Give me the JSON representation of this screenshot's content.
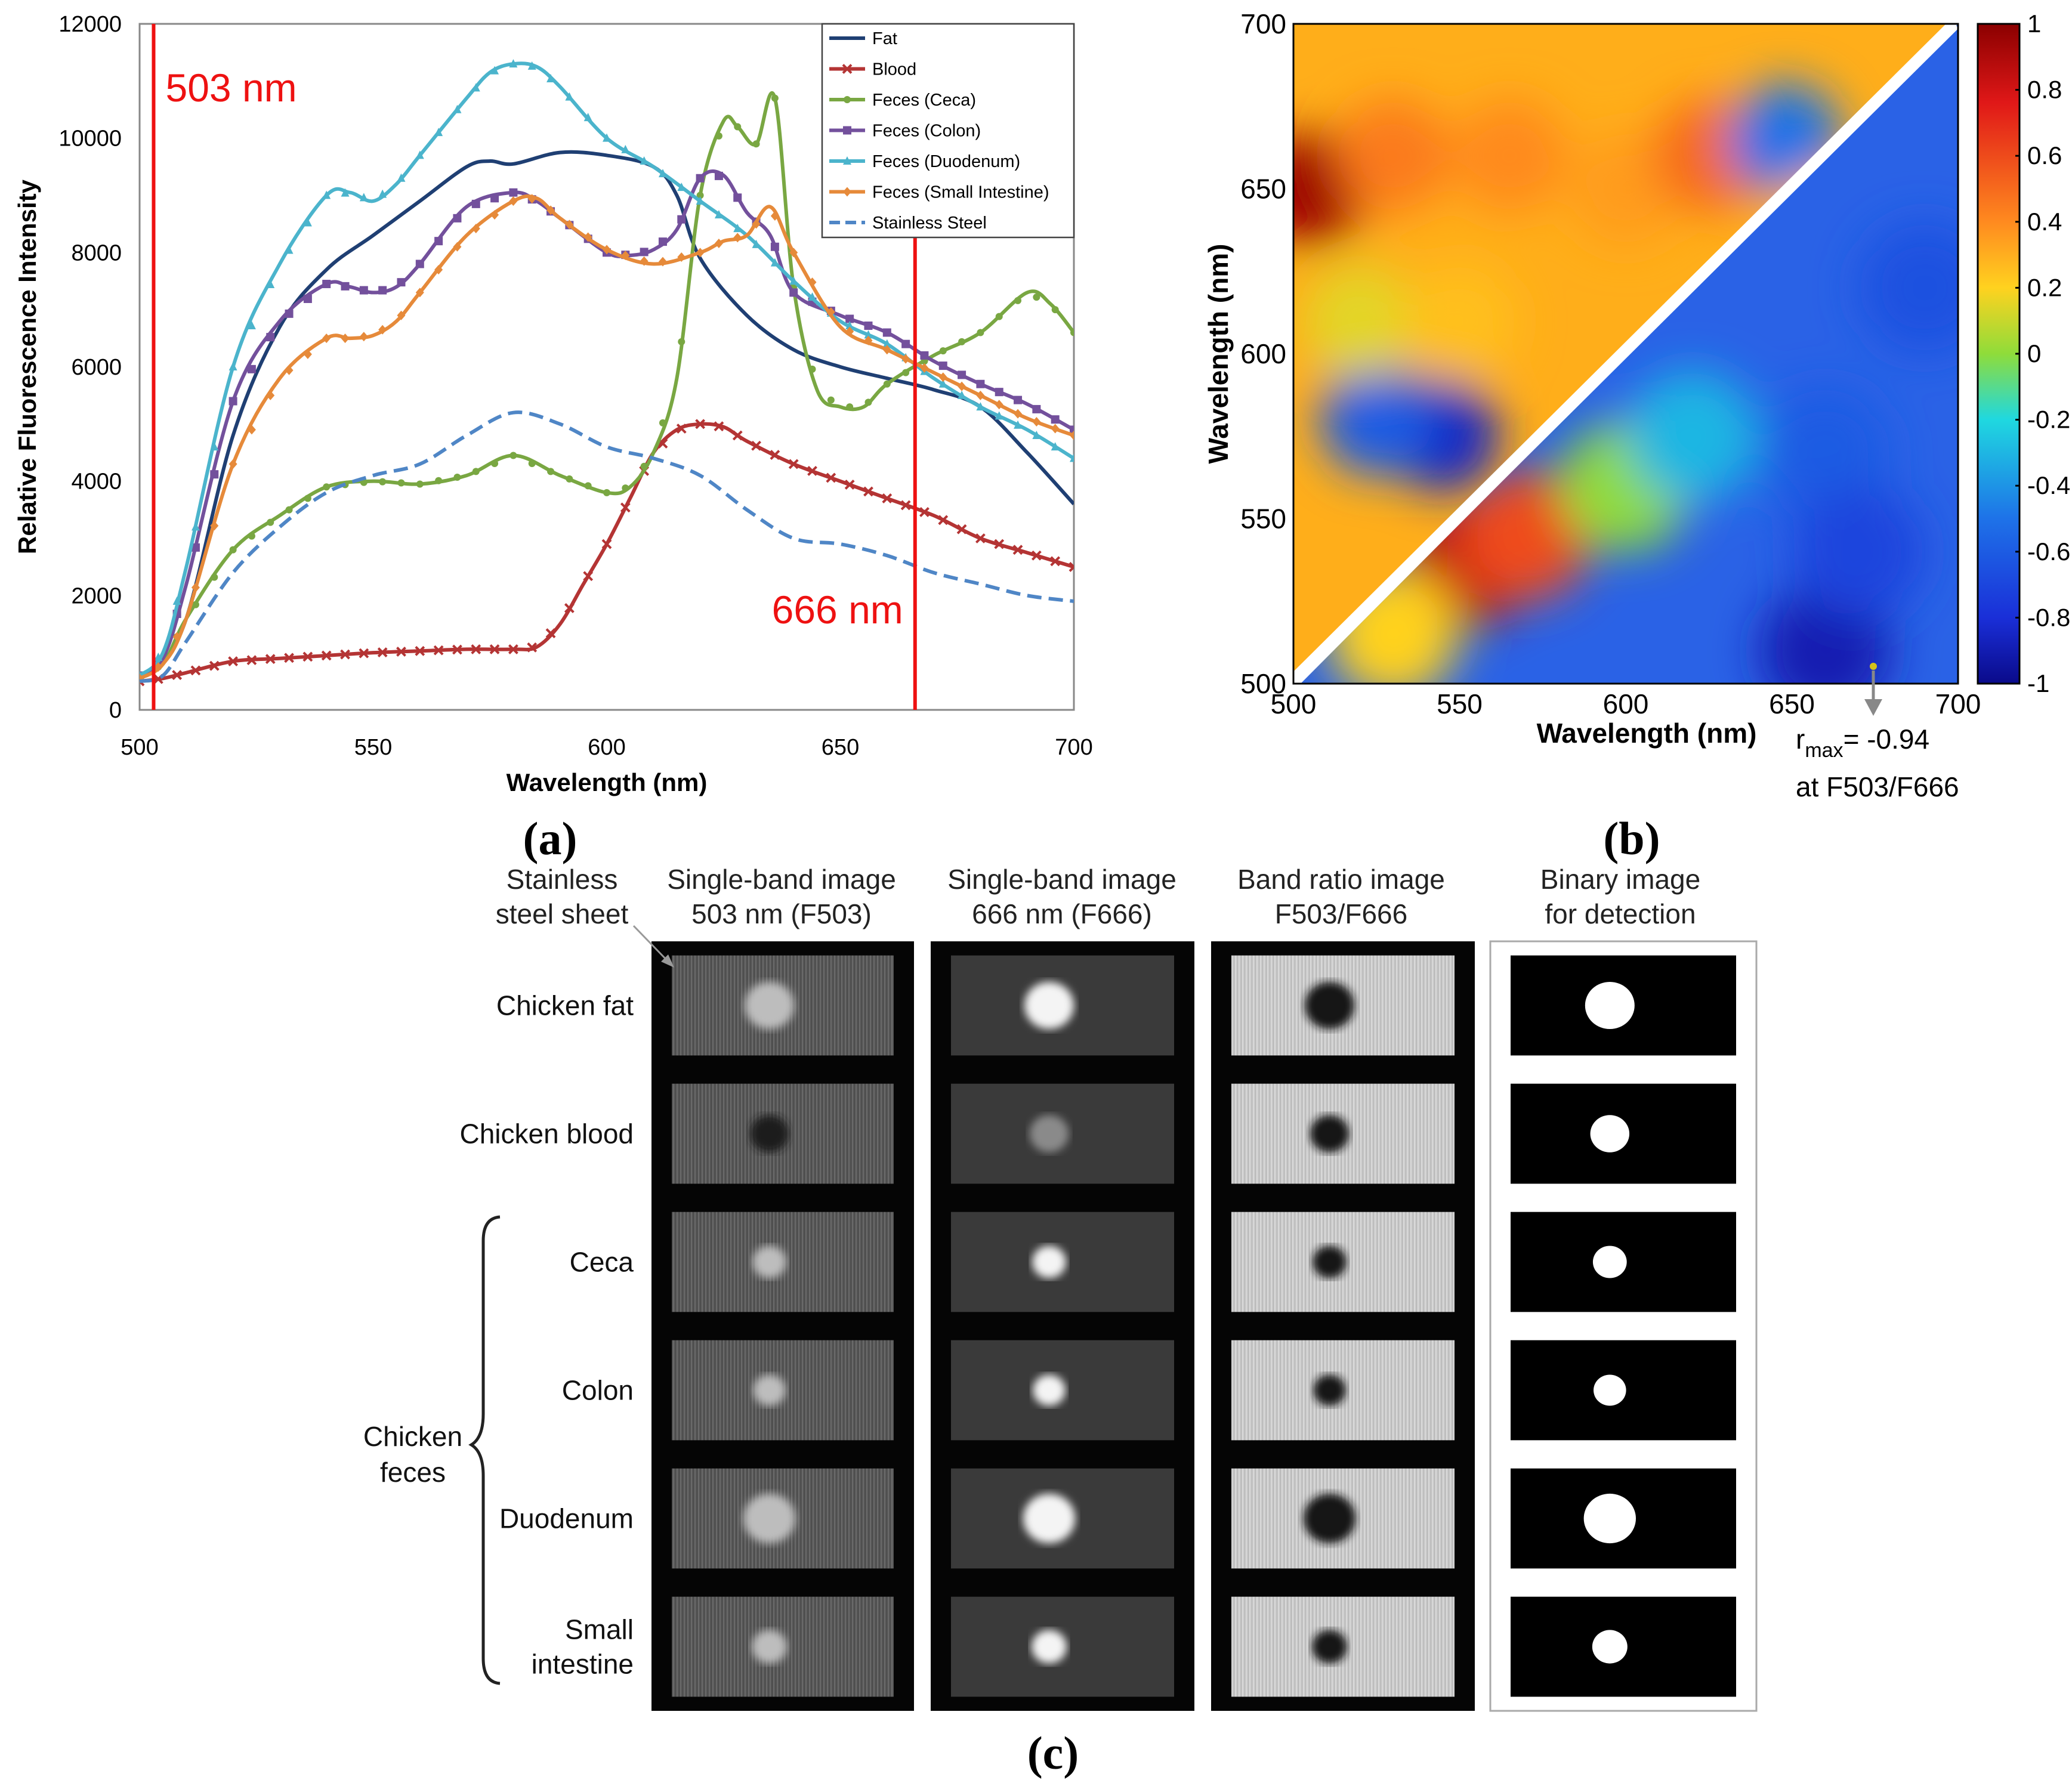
{
  "chart_data": [
    {
      "panel": "(a)",
      "type": "line",
      "xlabel": "Wavelength (nm)",
      "ylabel": "Relative Fluorescence Intensity",
      "xlim": [
        500,
        700
      ],
      "ylim": [
        0,
        12000
      ],
      "xticks": [
        "500",
        "550",
        "600",
        "650",
        "700"
      ],
      "yticks": [
        "0",
        "2000",
        "4000",
        "6000",
        "8000",
        "10000",
        "12000"
      ],
      "markers": [
        {
          "x": 503,
          "label": "503 nm"
        },
        {
          "x": 666,
          "label": "666 nm"
        }
      ],
      "legend_position": "top-right",
      "series": [
        {
          "name": "Fat",
          "color": "#1f3f73",
          "marker": "none",
          "x": [
            500,
            503,
            510,
            520,
            530,
            540,
            550,
            560,
            570,
            575,
            580,
            590,
            600,
            610,
            615,
            620,
            630,
            640,
            650,
            660,
            670,
            680,
            690,
            700
          ],
          "y": [
            600,
            700,
            1600,
            4800,
            6700,
            7700,
            8300,
            8900,
            9500,
            9600,
            9550,
            9750,
            9700,
            9500,
            9000,
            7900,
            6900,
            6300,
            6000,
            5800,
            5600,
            5300,
            4500,
            3600
          ]
        },
        {
          "name": "Blood",
          "color": "#b43434",
          "marker": "x",
          "x": [
            500,
            505,
            510,
            520,
            530,
            540,
            550,
            560,
            570,
            580,
            585,
            590,
            595,
            600,
            605,
            610,
            615,
            620,
            625,
            630,
            640,
            650,
            660,
            670,
            680,
            690,
            700
          ],
          "y": [
            500,
            550,
            650,
            850,
            900,
            950,
            1000,
            1030,
            1060,
            1060,
            1100,
            1500,
            2200,
            2900,
            3700,
            4500,
            4900,
            5000,
            4950,
            4700,
            4300,
            4000,
            3700,
            3400,
            3000,
            2750,
            2500
          ]
        },
        {
          "name": "Feces (Ceca)",
          "color": "#79a742",
          "marker": "circle",
          "x": [
            500,
            505,
            510,
            520,
            530,
            540,
            550,
            560,
            570,
            580,
            590,
            600,
            605,
            610,
            615,
            620,
            625,
            628,
            632,
            636,
            640,
            645,
            650,
            655,
            660,
            670,
            680,
            690,
            695,
            700
          ],
          "y": [
            550,
            800,
            1600,
            2800,
            3400,
            3900,
            4000,
            3950,
            4100,
            4450,
            4100,
            3800,
            3900,
            4500,
            5800,
            9000,
            10300,
            10200,
            9900,
            10700,
            7400,
            5600,
            5300,
            5300,
            5700,
            6200,
            6600,
            7300,
            7100,
            6600
          ]
        },
        {
          "name": "Feces (Colon)",
          "color": "#73509c",
          "marker": "square",
          "x": [
            500,
            505,
            510,
            520,
            530,
            540,
            545,
            550,
            555,
            560,
            570,
            580,
            585,
            590,
            600,
            605,
            610,
            615,
            620,
            625,
            630,
            635,
            640,
            650,
            660,
            670,
            680,
            690,
            700
          ],
          "y": [
            600,
            900,
            2200,
            5400,
            6800,
            7450,
            7400,
            7300,
            7400,
            7800,
            8800,
            9050,
            8900,
            8600,
            8000,
            7950,
            8050,
            8400,
            9300,
            9350,
            8700,
            8300,
            7300,
            6900,
            6600,
            6100,
            5700,
            5350,
            4900
          ]
        },
        {
          "name": "Feces (Duodenum)",
          "color": "#4bb4cc",
          "marker": "triangle",
          "x": [
            500,
            505,
            510,
            520,
            530,
            540,
            545,
            550,
            555,
            560,
            570,
            575,
            580,
            585,
            590,
            600,
            610,
            620,
            630,
            640,
            650,
            660,
            670,
            680,
            690,
            700
          ],
          "y": [
            600,
            1000,
            2500,
            6000,
            7800,
            9000,
            9050,
            8900,
            9200,
            9700,
            10700,
            11150,
            11300,
            11250,
            10900,
            10000,
            9500,
            8900,
            8300,
            7500,
            6800,
            6400,
            5800,
            5300,
            4900,
            4400
          ]
        },
        {
          "name": "Feces (Small Intestine)",
          "color": "#e68a3a",
          "marker": "diamond",
          "x": [
            500,
            505,
            510,
            520,
            530,
            540,
            545,
            550,
            555,
            560,
            570,
            580,
            585,
            590,
            600,
            610,
            620,
            625,
            630,
            635,
            640,
            650,
            660,
            670,
            680,
            690,
            700
          ],
          "y": [
            550,
            800,
            1600,
            4300,
            5800,
            6500,
            6500,
            6550,
            6800,
            7300,
            8300,
            8900,
            8950,
            8600,
            8050,
            7800,
            8000,
            8200,
            8300,
            8800,
            8000,
            6700,
            6300,
            5900,
            5500,
            5100,
            4800
          ]
        },
        {
          "name": "Stainless Steel",
          "color": "#4f86c6",
          "marker": "dash",
          "x": [
            500,
            505,
            510,
            520,
            530,
            540,
            550,
            560,
            570,
            580,
            590,
            600,
            610,
            620,
            630,
            640,
            650,
            660,
            670,
            680,
            690,
            700
          ],
          "y": [
            500,
            600,
            1200,
            2400,
            3200,
            3800,
            4100,
            4300,
            4800,
            5200,
            5000,
            4600,
            4400,
            4100,
            3500,
            3000,
            2900,
            2700,
            2400,
            2200,
            2000,
            1900
          ]
        }
      ]
    },
    {
      "panel": "(b)",
      "type": "heatmap",
      "xlabel": "Wavelength (nm)",
      "ylabel": "Wavelength (nm)",
      "xlim": [
        500,
        700
      ],
      "ylim": [
        500,
        700
      ],
      "xticks": [
        "500",
        "550",
        "600",
        "650",
        "700"
      ],
      "yticks": [
        "500",
        "550",
        "600",
        "650",
        "700"
      ],
      "colorbar": {
        "ticks": [
          "1",
          "0.8",
          "0.6",
          "0.4",
          "0.2",
          "0",
          "-0.2",
          "-0.4",
          "-0.6",
          "-0.8",
          "-1"
        ],
        "range": [
          -1,
          1
        ]
      },
      "annotation": {
        "r_label": "r",
        "r_sub": "max",
        "r_value": "= -0.94",
        "at": "at F503/F666"
      },
      "upper_hotspots": [
        {
          "x": 505,
          "y": 650,
          "r": 0.95
        },
        {
          "x": 530,
          "y": 660,
          "r": 0.45
        },
        {
          "x": 565,
          "y": 660,
          "r": 0.4
        },
        {
          "x": 600,
          "y": 650,
          "r": 0.35
        },
        {
          "x": 625,
          "y": 660,
          "r": 0.5
        },
        {
          "x": 648,
          "y": 665,
          "r": -0.5
        },
        {
          "x": 660,
          "y": 638,
          "r": 0.3
        },
        {
          "x": 545,
          "y": 575,
          "r": -0.85
        },
        {
          "x": 525,
          "y": 580,
          "r": -0.6
        },
        {
          "x": 520,
          "y": 610,
          "r": 0.15
        },
        {
          "x": 550,
          "y": 610,
          "r": 0.25
        }
      ],
      "lower_hotspots": [
        {
          "x": 552,
          "y": 537,
          "r": 0.85
        },
        {
          "x": 570,
          "y": 545,
          "r": 0.6
        },
        {
          "x": 530,
          "y": 515,
          "r": 0.2
        },
        {
          "x": 600,
          "y": 560,
          "r": 0.0
        },
        {
          "x": 620,
          "y": 575,
          "r": -0.3
        },
        {
          "x": 660,
          "y": 570,
          "r": -0.6
        },
        {
          "x": 660,
          "y": 510,
          "r": -0.9
        },
        {
          "x": 690,
          "y": 620,
          "r": -0.65
        },
        {
          "x": 670,
          "y": 540,
          "r": -0.7
        }
      ]
    }
  ],
  "panels": {
    "a": "(a)",
    "b": "(b)",
    "c": "(c)"
  },
  "images_panel": {
    "column_headers": [
      [
        "Stainless",
        "steel sheet"
      ],
      [
        "Single-band image",
        "503 nm (F503)"
      ],
      [
        "Single-band image",
        "666 nm (F666)"
      ],
      [
        "Band ratio image",
        "F503/F666"
      ],
      [
        "Binary image",
        "for detection"
      ]
    ],
    "rows": [
      {
        "label": [
          "Chicken fat"
        ],
        "spot_size": 0.38
      },
      {
        "label": [
          "Chicken blood"
        ],
        "spot_size": 0.3
      },
      {
        "label": [
          "Ceca"
        ],
        "spot_size": 0.26
      },
      {
        "label": [
          "Colon"
        ],
        "spot_size": 0.25
      },
      {
        "label": [
          "Duodenum"
        ],
        "spot_size": 0.4
      },
      {
        "label": [
          "Small",
          "intestine"
        ],
        "spot_size": 0.27
      }
    ],
    "group_label": [
      "Chicken",
      "feces"
    ]
  }
}
